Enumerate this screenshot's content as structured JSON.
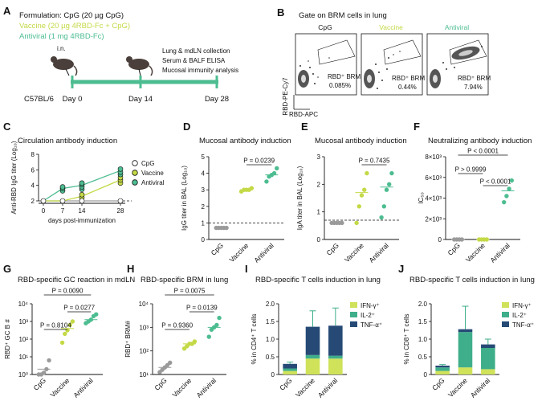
{
  "colors": {
    "cpg": "#9a9a9a",
    "vaccine": "#c4d946",
    "antiviral": "#4dbd91",
    "il2": "#3fae8a",
    "tnf": "#264a75",
    "ifn": "#cfe25a",
    "black": "#111111"
  },
  "panel_a": {
    "letter": "A",
    "formulation_title": "Formulation: CpG (20 µg CpG)",
    "vaccine_line": "Vaccine (20 µg 4RBD-Fc + CpG)",
    "antiviral_line": "Antiviral (1 mg 4RBD-Fc)",
    "route": "i.n.",
    "readout_lines": [
      "Lung & mdLN collection",
      "Serum & BALF ELISA",
      "Mucosal immunity analysis"
    ],
    "strain": "C57BL/6",
    "days": [
      "Day 0",
      "Day 14",
      "Day 28"
    ]
  },
  "panel_b": {
    "letter": "B",
    "title": "Gate on BRM cells in lung",
    "y_axis": "RBD-PE-Cy7",
    "x_axis": "RBD-APC",
    "plots": [
      {
        "name": "CpG",
        "gate": "RBD⁺ BRM",
        "pct": "0.085%"
      },
      {
        "name": "Vaccine",
        "gate": "RBD⁺ BRM",
        "pct": "0.44%"
      },
      {
        "name": "Antiviral",
        "gate": "RBD⁺ BRM",
        "pct": "7.94%"
      }
    ]
  },
  "chart_data": [
    {
      "panel": "C",
      "type": "line",
      "title": "Circulation antibody induction",
      "xlabel": "days post-immunization",
      "ylabel": "Anti-RBD IgG titer (Log₁₀)",
      "x": [
        0,
        7,
        14,
        28
      ],
      "x_ticks": [
        "0",
        "7",
        "14",
        "28"
      ],
      "y_ticks": [
        "2",
        "4",
        "6",
        "8"
      ],
      "ylim": [
        1.5,
        8
      ],
      "baseline": 2,
      "series": [
        {
          "name": "CpG",
          "values": [
            2,
            2,
            2,
            2
          ]
        },
        {
          "name": "Vaccine",
          "values": [
            2,
            2,
            2.6,
            4.7
          ]
        },
        {
          "name": "Antiviral",
          "values": [
            2,
            3.6,
            4.0,
            5.9
          ]
        }
      ],
      "points": {
        "Antiviral": [
          [
            7,
            3.3
          ],
          [
            7,
            3.6
          ],
          [
            7,
            3.8
          ],
          [
            14,
            3.5
          ],
          [
            14,
            3.8
          ],
          [
            14,
            4.1
          ],
          [
            14,
            4.3
          ],
          [
            28,
            5.4
          ],
          [
            28,
            5.7
          ],
          [
            28,
            6.1
          ]
        ],
        "Vaccine": [
          [
            14,
            2.4
          ],
          [
            14,
            2.8
          ],
          [
            28,
            4.3
          ],
          [
            28,
            4.7
          ],
          [
            28,
            5.0
          ]
        ]
      }
    },
    {
      "panel": "D",
      "type": "scatter",
      "title": "Mucosal antibody induction",
      "ylabel": "IgG titer in BAL (Log₁₀)",
      "categories": [
        "CpG",
        "Vaccine",
        "Antiviral"
      ],
      "y_ticks": [
        "0",
        "1",
        "2",
        "3",
        "4",
        "5"
      ],
      "ylim": [
        0,
        5
      ],
      "baseline": 1,
      "points": [
        [
          0.7,
          0.7,
          0.7,
          0.7,
          0.7
        ],
        [
          2.9,
          3.0,
          3.0,
          3.0,
          3.1
        ],
        [
          3.5,
          3.8,
          3.9,
          4.0,
          4.3
        ]
      ],
      "means": [
        0.7,
        3.0,
        3.9
      ],
      "comparisons": [
        {
          "label": "P = 0.0239",
          "from": 1,
          "to": 2
        }
      ]
    },
    {
      "panel": "E",
      "type": "scatter",
      "title": "Mucosal antibody induction",
      "ylabel": "IgA titer in BAL (Log₁₀)",
      "categories": [
        "CpG",
        "Vaccine",
        "Antiviral"
      ],
      "y_ticks": [
        "0",
        "1",
        "2",
        "3"
      ],
      "ylim": [
        0,
        3
      ],
      "baseline": 0.7,
      "points": [
        [
          0.6,
          0.6,
          0.6,
          0.6,
          0.6
        ],
        [
          0.6,
          1.2,
          1.6,
          1.8,
          2.4
        ],
        [
          0.8,
          1.2,
          1.8,
          2.0,
          2.4
        ]
      ],
      "means": [
        0.6,
        1.7,
        1.9
      ],
      "comparisons": [
        {
          "label": "P = 0.7435",
          "from": 1,
          "to": 2
        }
      ]
    },
    {
      "panel": "F",
      "type": "scatter",
      "title": "Neutralizing antibody induction",
      "ylabel": "IC₅₀",
      "categories": [
        "CpG",
        "Vaccine",
        "Antiviral"
      ],
      "y_ticks": [
        "0",
        "2×10³",
        "4×10³",
        "6×10³",
        "8×10³"
      ],
      "ylim": [
        0,
        8000
      ],
      "points": [
        [
          0,
          0,
          0,
          0
        ],
        [
          0,
          0,
          0,
          0
        ],
        [
          3600,
          4200,
          4900,
          5700
        ]
      ],
      "means": [
        0,
        0,
        4700
      ],
      "comparisons": [
        {
          "label": "P < 0.0001",
          "from": 0,
          "to": 2
        },
        {
          "label": "P > 0.9999",
          "from": 0,
          "to": 1
        },
        {
          "label": "P < 0.0001",
          "from": 1,
          "to": 2
        }
      ]
    },
    {
      "panel": "G",
      "type": "scatter",
      "title": "RBD-specific GC reaction in mdLN",
      "ylabel": "RBD⁺ GC B #",
      "y_scale": "log",
      "categories": [
        "CpG",
        "Vaccine",
        "Antiviral"
      ],
      "y_ticks": [
        "10⁰",
        "10¹",
        "10²",
        "10³",
        "10⁴"
      ],
      "ylim": [
        0,
        4
      ],
      "points": [
        [
          0,
          0,
          0.1,
          0.3,
          0.8
        ],
        [
          1.8,
          2.3,
          2.5,
          2.8,
          3.0
        ],
        [
          2.9,
          3.0,
          3.1,
          3.3,
          3.4
        ]
      ],
      "means": [
        0.3,
        2.6,
        3.1
      ],
      "comparisons": [
        {
          "label": "P = 0.0090",
          "from": 0,
          "to": 2
        },
        {
          "label": "P = 0.0277",
          "from": 1,
          "to": 2
        },
        {
          "label": "P = 0.8104",
          "from": 0,
          "to": 1
        }
      ]
    },
    {
      "panel": "H",
      "type": "scatter",
      "title": "RBD-specific BRM in lung",
      "ylabel": "RBD⁺ BRM#",
      "y_scale": "log",
      "categories": [
        "CpG",
        "Vaccine",
        "Antiviral"
      ],
      "y_ticks": [
        "10¹",
        "10²",
        "10³",
        "10⁴"
      ],
      "ylim": [
        1,
        4
      ],
      "points": [
        [
          1.1,
          1.2,
          1.3,
          1.4,
          1.5
        ],
        [
          2.1,
          2.2,
          2.3,
          2.3,
          2.4
        ],
        [
          2.6,
          2.9,
          3.0,
          3.1,
          3.4
        ]
      ],
      "means": [
        1.3,
        2.3,
        3.0
      ],
      "comparisons": [
        {
          "label": "P = 0.0075",
          "from": 0,
          "to": 2
        },
        {
          "label": "P = 0.0139",
          "from": 1,
          "to": 2
        },
        {
          "label": "P = 0.9360",
          "from": 0,
          "to": 1
        }
      ]
    },
    {
      "panel": "I",
      "type": "bar",
      "stacked": true,
      "title": "RBD-specific T cells induction in lung",
      "ylabel": "% in CD4⁺ T cells",
      "categories": [
        "CpG",
        "Vaccine",
        "Antiviral"
      ],
      "y_ticks": [
        "0",
        "0.5",
        "1.0",
        "1.5",
        "2.0"
      ],
      "ylim": [
        0,
        2.0
      ],
      "series": [
        {
          "name": "IFN-γ⁺",
          "values": [
            0.1,
            0.45,
            0.45
          ]
        },
        {
          "name": "IL-2⁺",
          "values": [
            0.07,
            0.1,
            0.08
          ]
        },
        {
          "name": "TNF-α⁺",
          "values": [
            0.13,
            0.8,
            0.85
          ]
        }
      ],
      "errors": [
        0.05,
        0.45,
        0.5
      ]
    },
    {
      "panel": "J",
      "type": "bar",
      "stacked": true,
      "title": "RBD-specific T cells induction in lung",
      "ylabel": "% in CD8⁺ T cells",
      "categories": [
        "CpG",
        "Vaccine",
        "Antiviral"
      ],
      "y_ticks": [
        "0",
        "0.5",
        "1.0",
        "1.5",
        "2.0"
      ],
      "ylim": [
        0,
        2.0
      ],
      "series": [
        {
          "name": "IFN-γ⁺",
          "values": [
            0.1,
            0.2,
            0.15
          ]
        },
        {
          "name": "IL-2⁺",
          "values": [
            0.1,
            1.0,
            0.6
          ]
        },
        {
          "name": "TNF-α⁺",
          "values": [
            0.05,
            0.08,
            0.1
          ]
        }
      ],
      "errors": [
        0.03,
        0.65,
        0.15
      ]
    }
  ]
}
